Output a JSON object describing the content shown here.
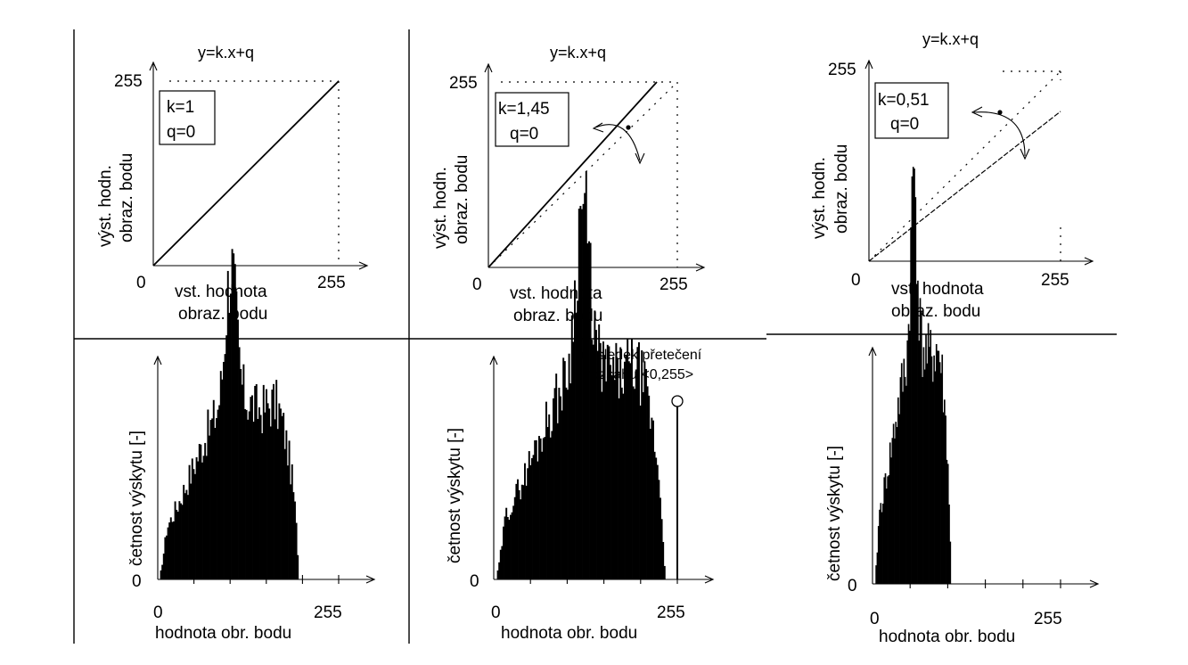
{
  "panels": [
    {
      "id": "p1",
      "title": "y=k.x+q",
      "k_text": "k=1",
      "q_text": "q=0",
      "k": 1.0,
      "q": 0,
      "y_label_line1": "výst. hodn.",
      "y_label_line2": "obraz. bodu",
      "x_label_line1": "vst. hodnota",
      "x_label_line2": "obraz. bodu",
      "origin_label": "0",
      "max_label_x": "255",
      "max_label_y": "255"
    },
    {
      "id": "p2",
      "title": "y=k.x+q",
      "k_text": "k=1,45",
      "q_text": "q=0",
      "k": 1.45,
      "q": 0,
      "y_label_line1": "výst. hodn.",
      "y_label_line2": "obraz. bodu",
      "x_label_line1": "vst. hodnota",
      "x_label_line2": "obraz. bodu",
      "origin_label": "0",
      "max_label_x": "255",
      "max_label_y": "255"
    },
    {
      "id": "p3",
      "title": "y=k.x+q",
      "k_text": "k=0,51",
      "q_text": "q=0",
      "k": 0.51,
      "q": 0,
      "y_label_line1": "výst. hodn.",
      "y_label_line2": "obraz. bodu",
      "x_label_line1": "vst. hodnota",
      "x_label_line2": "obraz. bodu",
      "origin_label": "0",
      "max_label_x": "255",
      "max_label_y": "255"
    }
  ],
  "histograms": [
    {
      "id": "h1",
      "y_label": "četnost výskytu [-]",
      "x_label": "hodnota obr. bodu",
      "origin_label": "0",
      "x_start_label": "0",
      "x_end_label": "255",
      "annotation_line1": "",
      "annotation_line2": ""
    },
    {
      "id": "h2",
      "y_label": "četnost výskytu [-]",
      "x_label": "hodnota obr. bodu",
      "origin_label": "0",
      "x_start_label": "0",
      "x_end_label": "255",
      "annotation_line1": "důsledek přetečení",
      "annotation_line2": "rozsahu <0,255>"
    },
    {
      "id": "h3",
      "y_label": "četnost výskytu [-]",
      "x_label": "hodnota obr. bodu",
      "origin_label": "0",
      "x_start_label": "0",
      "x_end_label": "255",
      "annotation_line1": "",
      "annotation_line2": ""
    }
  ],
  "colors": {
    "ink": "#000000",
    "background": "#ffffff"
  }
}
